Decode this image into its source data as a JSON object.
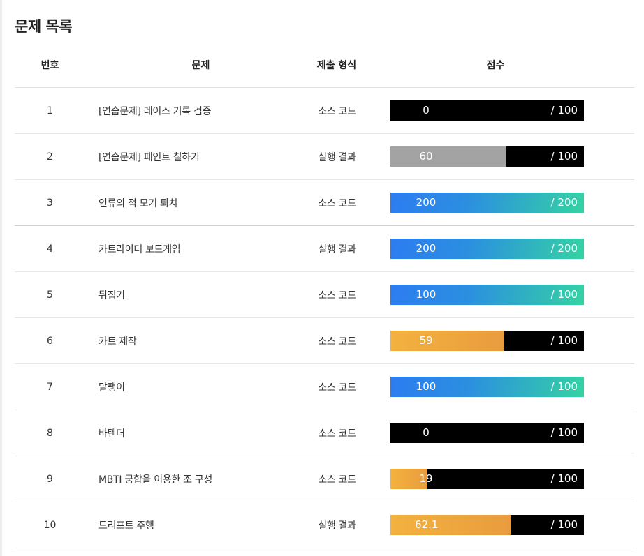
{
  "page": {
    "title": "문제 목록"
  },
  "table": {
    "headers": {
      "num": "번호",
      "title": "문제",
      "type": "제출 형식",
      "score": "점수"
    },
    "rows": [
      {
        "num": "1",
        "title": "[연습문제] 레이스 기록 검증",
        "type": "소스 코드",
        "score": "0",
        "max": "/ 100",
        "fraction": 0,
        "style": "none"
      },
      {
        "num": "2",
        "title": "[연습문제] 페인트 칠하기",
        "type": "실행 결과",
        "score": "60",
        "max": "/ 100",
        "fraction": 0.6,
        "style": "gray"
      },
      {
        "num": "3",
        "title": "인류의 적 모기 퇴치",
        "type": "소스 코드",
        "score": "200",
        "max": "/ 200",
        "fraction": 1,
        "style": "full"
      },
      {
        "num": "4",
        "title": "카트라이더 보드게임",
        "type": "실행 결과",
        "score": "200",
        "max": "/ 200",
        "fraction": 1,
        "style": "full"
      },
      {
        "num": "5",
        "title": "뒤집기",
        "type": "소스 코드",
        "score": "100",
        "max": "/ 100",
        "fraction": 1,
        "style": "full"
      },
      {
        "num": "6",
        "title": "카트 제작",
        "type": "소스 코드",
        "score": "59",
        "max": "/ 100",
        "fraction": 0.59,
        "style": "gold"
      },
      {
        "num": "7",
        "title": "달팽이",
        "type": "소스 코드",
        "score": "100",
        "max": "/ 100",
        "fraction": 1,
        "style": "full"
      },
      {
        "num": "8",
        "title": "바텐더",
        "type": "소스 코드",
        "score": "0",
        "max": "/ 100",
        "fraction": 0,
        "style": "none"
      },
      {
        "num": "9",
        "title": "MBTI 궁합을 이용한 조 구성",
        "type": "소스 코드",
        "score": "19",
        "max": "/ 100",
        "fraction": 0.19,
        "style": "gold"
      },
      {
        "num": "10",
        "title": "드리프트 주행",
        "type": "실행 결과",
        "score": "62.1",
        "max": "/ 100",
        "fraction": 0.621,
        "style": "gold"
      }
    ]
  },
  "colors": {
    "bar_background": "#000000",
    "partial_gray": "#a3a3a3",
    "partial_gold": "#f3b23f",
    "full_gradient_start": "#2d7cf0",
    "full_gradient_end": "#34d3a3"
  }
}
